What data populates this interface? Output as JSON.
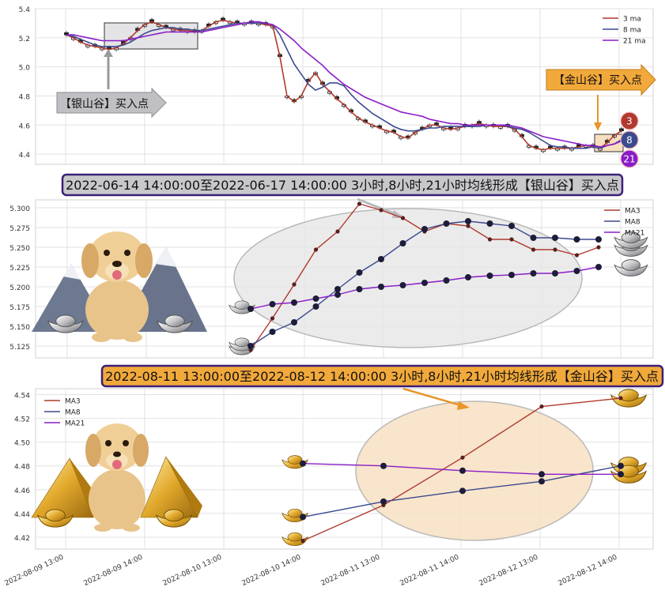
{
  "colors": {
    "ma3": "#b03a2e",
    "ma8": "#3b4a8f",
    "ma21": "#8a1cc7",
    "silver_banner_bg": "#c8c8cc",
    "gold_banner_bg": "#f2a93b",
    "banner_border": "#3b1f78",
    "candle_up": "#ffffff",
    "candle_down": "#222222",
    "highlight_fill": "#e9e9e9",
    "gold_ellipse_fill": "#f7e2c6"
  },
  "icons": [
    "dog-icon",
    "mountain-icon",
    "silver-ingot-icon",
    "gold-pyramid-icon",
    "gold-ingot-icon",
    "arrow-icon"
  ],
  "chart_data": [
    {
      "type": "candlestick",
      "legend": [
        "3 ma",
        "8 ma",
        "21 ma"
      ],
      "legend_position": "top-right",
      "grid": true,
      "ylim": [
        4.33,
        5.4
      ],
      "yticks": [
        "4.4",
        "4.6",
        "4.8",
        "5.0",
        "5.2",
        "5.4"
      ],
      "series": [
        {
          "name": "3 ma",
          "values": [
            5.22,
            5.2,
            5.17,
            5.15,
            5.14,
            5.13,
            5.12,
            5.13,
            5.16,
            5.2,
            5.25,
            5.29,
            5.31,
            5.29,
            5.27,
            5.26,
            5.25,
            5.25,
            5.24,
            5.25,
            5.28,
            5.31,
            5.32,
            5.31,
            5.3,
            5.3,
            5.3,
            5.3,
            5.29,
            5.28,
            5.07,
            4.8,
            4.76,
            4.8,
            4.9,
            4.96,
            4.88,
            4.83,
            4.78,
            4.74,
            4.69,
            4.65,
            4.62,
            4.6,
            4.58,
            4.56,
            4.55,
            4.52,
            4.51,
            4.55,
            4.57,
            4.6,
            4.6,
            4.58,
            4.57,
            4.58,
            4.59,
            4.6,
            4.61,
            4.6,
            4.59,
            4.59,
            4.59,
            4.57,
            4.52,
            4.46,
            4.44,
            4.43,
            4.44,
            4.44,
            4.44,
            4.44,
            4.45,
            4.46,
            4.45,
            4.44,
            4.48,
            4.53,
            4.56
          ]
        },
        {
          "name": "8 ma",
          "values": [
            5.22,
            5.21,
            5.19,
            5.17,
            5.15,
            5.14,
            5.14,
            5.14,
            5.15,
            5.17,
            5.2,
            5.23,
            5.25,
            5.26,
            5.27,
            5.27,
            5.26,
            5.26,
            5.25,
            5.25,
            5.26,
            5.27,
            5.28,
            5.29,
            5.3,
            5.3,
            5.3,
            5.3,
            5.3,
            5.29,
            5.22,
            5.12,
            5.02,
            4.95,
            4.88,
            4.84,
            4.86,
            4.89,
            4.89,
            4.87,
            4.81,
            4.76,
            4.72,
            4.68,
            4.65,
            4.62,
            4.59,
            4.57,
            4.56,
            4.56,
            4.57,
            4.58,
            4.58,
            4.59,
            4.59,
            4.59,
            4.59,
            4.59,
            4.59,
            4.6,
            4.6,
            4.6,
            4.59,
            4.58,
            4.57,
            4.55,
            4.52,
            4.49,
            4.46,
            4.45,
            4.45,
            4.44,
            4.44,
            4.44,
            4.45,
            4.44,
            4.46,
            4.47,
            4.5
          ]
        },
        {
          "name": "21 ma",
          "values": [
            5.22,
            5.22,
            5.21,
            5.2,
            5.19,
            5.18,
            5.18,
            5.18,
            5.18,
            5.19,
            5.2,
            5.21,
            5.22,
            5.23,
            5.24,
            5.24,
            5.24,
            5.24,
            5.24,
            5.24,
            5.25,
            5.26,
            5.27,
            5.28,
            5.29,
            5.3,
            5.31,
            5.31,
            5.3,
            5.29,
            5.26,
            5.22,
            5.18,
            5.13,
            5.09,
            5.05,
            5.01,
            4.96,
            4.92,
            4.88,
            4.85,
            4.82,
            4.79,
            4.77,
            4.75,
            4.73,
            4.71,
            4.69,
            4.68,
            4.67,
            4.66,
            4.64,
            4.63,
            4.62,
            4.61,
            4.61,
            4.6,
            4.6,
            4.6,
            4.6,
            4.6,
            4.6,
            4.6,
            4.59,
            4.58,
            4.56,
            4.54,
            4.52,
            4.51,
            4.5,
            4.49,
            4.48,
            4.47,
            4.46,
            4.46,
            4.45,
            4.46,
            4.47,
            4.49
          ]
        }
      ],
      "annotations": [
        {
          "label": "【银山谷】买入点"
        },
        {
          "label": "【金山谷】买入点"
        }
      ],
      "end_markers": [
        "3",
        "8",
        "21"
      ]
    },
    {
      "type": "line",
      "banner": "2022-06-14 14:00:00至2022-06-17 14:00:00 3小时,8小时,21小时均线形成【银山谷】买入点",
      "legend": [
        "MA3",
        "MA8",
        "MA21"
      ],
      "legend_position": "top-right",
      "grid": true,
      "ylim": [
        5.11,
        5.31
      ],
      "yticks": [
        "5.125",
        "5.150",
        "5.175",
        "5.200",
        "5.225",
        "5.250",
        "5.275",
        "5.300"
      ],
      "series": [
        {
          "name": "MA3",
          "values": [
            5.12,
            5.16,
            5.203,
            5.247,
            5.27,
            5.305,
            5.297,
            5.287,
            5.27,
            5.28,
            5.277,
            5.26,
            5.26,
            5.247,
            5.247,
            5.24,
            5.25
          ]
        },
        {
          "name": "MA8",
          "values": [
            5.125,
            5.143,
            5.155,
            5.175,
            5.197,
            5.218,
            5.235,
            5.255,
            5.273,
            5.28,
            5.283,
            5.28,
            5.277,
            5.262,
            5.262,
            5.26,
            5.26
          ]
        },
        {
          "name": "MA21",
          "values": [
            5.172,
            5.178,
            5.18,
            5.185,
            5.19,
            5.197,
            5.2,
            5.202,
            5.205,
            5.208,
            5.212,
            5.214,
            5.215,
            5.217,
            5.217,
            5.22,
            5.225
          ]
        }
      ]
    },
    {
      "type": "line",
      "banner": "2022-08-11 13:00:00至2022-08-12 14:00:00 3小时,8小时,21小时均线形成【金山谷】买入点",
      "legend": [
        "MA3",
        "MA8",
        "MA21"
      ],
      "legend_position": "top-left",
      "grid": true,
      "ylim": [
        4.41,
        4.545
      ],
      "yticks": [
        "4.42",
        "4.44",
        "4.46",
        "4.48",
        "4.50",
        "4.52",
        "4.54"
      ],
      "x": [
        "2022-08-10 14:00",
        "2022-08-11 13:00",
        "2022-08-11 14:00",
        "2022-08-12 13:00",
        "2022-08-12 14:00"
      ],
      "xticks": [
        "2022-08-09 13:00",
        "2022-08-09 14:00",
        "2022-08-10 13:00",
        "2022-08-10 14:00",
        "2022-08-11 13:00",
        "2022-08-11 14:00",
        "2022-08-12 13:00",
        "2022-08-12 14:00"
      ],
      "series": [
        {
          "name": "MA3",
          "values": [
            4.417,
            4.447,
            4.487,
            4.53,
            4.537
          ]
        },
        {
          "name": "MA8",
          "values": [
            4.437,
            4.45,
            4.459,
            4.467,
            4.48
          ]
        },
        {
          "name": "MA21",
          "values": [
            4.482,
            4.48,
            4.476,
            4.473,
            4.473
          ]
        }
      ]
    }
  ]
}
